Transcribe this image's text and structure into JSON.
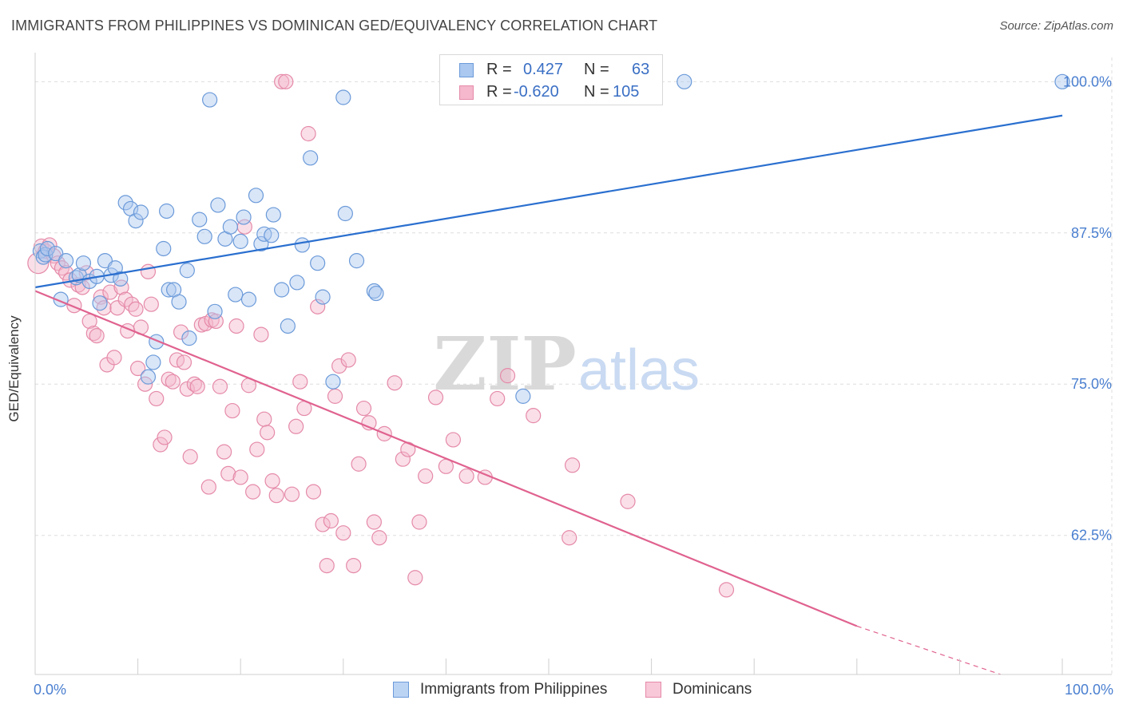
{
  "title": "IMMIGRANTS FROM PHILIPPINES VS DOMINICAN GED/EQUIVALENCY CORRELATION CHART",
  "source": "Source: ZipAtlas.com",
  "watermark": {
    "zip": "ZIP",
    "atlas": "atlas"
  },
  "legend_top": {
    "rows": [
      {
        "r_label": "R =",
        "r_value": "0.427",
        "n_label": "N =",
        "n_value": "63"
      },
      {
        "r_label": "R =",
        "r_value": "-0.620",
        "n_label": "N =",
        "n_value": "105"
      }
    ]
  },
  "colors": {
    "blue_fill": "#aac8f0",
    "blue_stroke": "#6b9ad9",
    "blue_line": "#2a6fcf",
    "pink_fill": "#f5b8cc",
    "pink_stroke": "#e58aa8",
    "pink_line": "#e0628f",
    "tick_label": "#4a7fd0",
    "grid": "#dddddd"
  },
  "chart_data": {
    "type": "scatter",
    "title": "IMMIGRANTS FROM PHILIPPINES VS DOMINICAN GED/EQUIVALENCY CORRELATION CHART",
    "xlabel": "",
    "ylabel": "GED/Equivalency",
    "xlim": [
      0,
      100
    ],
    "ylim": [
      51,
      102
    ],
    "x_tick_labels": [
      "0.0%",
      "100.0%"
    ],
    "y_ticks": [
      {
        "value": 62.5,
        "label": "62.5%"
      },
      {
        "value": 75.0,
        "label": "75.0%"
      },
      {
        "value": 87.5,
        "label": "87.5%"
      },
      {
        "value": 100.0,
        "label": "100.0%"
      }
    ],
    "grid": true,
    "legend_position": "bottom",
    "series": [
      {
        "name": "Immigrants from Philippines",
        "color": "blue",
        "r": 0.427,
        "n": 63,
        "trend": {
          "x0": 0,
          "y0": 83.0,
          "x1": 100,
          "y1": 97.2
        },
        "points": [
          [
            0.5,
            86.0
          ],
          [
            0.8,
            85.5
          ],
          [
            1.0,
            85.7
          ],
          [
            1.2,
            86.2
          ],
          [
            2.0,
            85.8
          ],
          [
            2.5,
            82.0
          ],
          [
            3.0,
            85.2
          ],
          [
            4.0,
            83.8
          ],
          [
            4.3,
            84.0
          ],
          [
            4.7,
            85.0
          ],
          [
            5.3,
            83.5
          ],
          [
            6.0,
            83.9
          ],
          [
            6.3,
            81.7
          ],
          [
            6.8,
            85.2
          ],
          [
            7.4,
            84.0
          ],
          [
            7.8,
            84.6
          ],
          [
            8.3,
            83.7
          ],
          [
            8.8,
            90.0
          ],
          [
            9.3,
            89.5
          ],
          [
            9.8,
            88.5
          ],
          [
            10.3,
            89.2
          ],
          [
            11.0,
            75.6
          ],
          [
            11.5,
            76.8
          ],
          [
            11.8,
            78.5
          ],
          [
            12.5,
            86.2
          ],
          [
            12.8,
            89.3
          ],
          [
            13.0,
            82.8
          ],
          [
            13.5,
            82.8
          ],
          [
            14.0,
            81.8
          ],
          [
            14.8,
            84.4
          ],
          [
            15.0,
            78.8
          ],
          [
            16.0,
            88.6
          ],
          [
            16.5,
            87.2
          ],
          [
            17.0,
            98.5
          ],
          [
            17.5,
            81.0
          ],
          [
            17.8,
            89.8
          ],
          [
            18.5,
            87.0
          ],
          [
            19.0,
            88.0
          ],
          [
            19.5,
            82.4
          ],
          [
            20.0,
            86.8
          ],
          [
            20.3,
            88.8
          ],
          [
            20.8,
            82.0
          ],
          [
            21.5,
            90.6
          ],
          [
            22.0,
            86.6
          ],
          [
            22.3,
            87.4
          ],
          [
            23.0,
            87.3
          ],
          [
            23.2,
            89.0
          ],
          [
            24.0,
            82.8
          ],
          [
            24.6,
            79.8
          ],
          [
            25.5,
            83.4
          ],
          [
            26.0,
            86.5
          ],
          [
            26.8,
            93.7
          ],
          [
            27.5,
            85.0
          ],
          [
            28.0,
            82.2
          ],
          [
            29.0,
            75.2
          ],
          [
            30.0,
            98.7
          ],
          [
            30.2,
            89.1
          ],
          [
            31.3,
            85.2
          ],
          [
            33.0,
            82.7
          ],
          [
            33.2,
            82.5
          ],
          [
            47.5,
            74.0
          ],
          [
            63.2,
            100.0
          ],
          [
            100.0,
            100.0
          ]
        ]
      },
      {
        "name": "Dominicans",
        "color": "pink",
        "r": -0.62,
        "n": 105,
        "trend": {
          "x0": 0,
          "y0": 82.7,
          "x1": 80,
          "y1": 55.0,
          "dash_x1": 94,
          "dash_y1": 51.0
        },
        "points": [
          [
            0.3,
            85.0
          ],
          [
            0.6,
            86.4
          ],
          [
            1.0,
            86.0
          ],
          [
            1.4,
            86.5
          ],
          [
            1.8,
            85.6
          ],
          [
            2.2,
            85.0
          ],
          [
            2.6,
            84.6
          ],
          [
            3.0,
            84.2
          ],
          [
            3.4,
            83.6
          ],
          [
            3.8,
            81.5
          ],
          [
            4.2,
            83.2
          ],
          [
            4.6,
            83.0
          ],
          [
            5.0,
            84.2
          ],
          [
            5.3,
            80.2
          ],
          [
            5.7,
            79.2
          ],
          [
            6.0,
            79.0
          ],
          [
            6.4,
            82.2
          ],
          [
            6.7,
            81.3
          ],
          [
            7.0,
            76.6
          ],
          [
            7.3,
            82.6
          ],
          [
            7.7,
            77.2
          ],
          [
            8.0,
            81.3
          ],
          [
            8.4,
            83.0
          ],
          [
            8.8,
            82.0
          ],
          [
            9.0,
            79.4
          ],
          [
            9.4,
            81.6
          ],
          [
            9.8,
            81.2
          ],
          [
            10.0,
            76.3
          ],
          [
            10.3,
            79.7
          ],
          [
            10.7,
            75.0
          ],
          [
            11.0,
            84.3
          ],
          [
            11.3,
            81.6
          ],
          [
            11.8,
            73.8
          ],
          [
            12.2,
            70.0
          ],
          [
            12.6,
            70.6
          ],
          [
            13.0,
            75.4
          ],
          [
            13.4,
            75.2
          ],
          [
            13.8,
            77.0
          ],
          [
            14.2,
            79.3
          ],
          [
            14.5,
            76.8
          ],
          [
            14.8,
            74.6
          ],
          [
            15.1,
            69.0
          ],
          [
            15.5,
            75.0
          ],
          [
            15.8,
            74.8
          ],
          [
            16.2,
            79.9
          ],
          [
            16.6,
            80.0
          ],
          [
            16.9,
            66.5
          ],
          [
            17.2,
            80.3
          ],
          [
            17.6,
            80.2
          ],
          [
            18.0,
            74.8
          ],
          [
            18.4,
            69.4
          ],
          [
            18.8,
            67.6
          ],
          [
            19.2,
            72.8
          ],
          [
            19.6,
            79.8
          ],
          [
            20.0,
            67.3
          ],
          [
            20.4,
            88.0
          ],
          [
            20.8,
            74.9
          ],
          [
            21.2,
            66.1
          ],
          [
            21.6,
            69.6
          ],
          [
            22.0,
            79.1
          ],
          [
            22.3,
            72.1
          ],
          [
            22.6,
            71.0
          ],
          [
            23.1,
            67.0
          ],
          [
            23.5,
            65.8
          ],
          [
            24.0,
            100.0
          ],
          [
            24.4,
            100.0
          ],
          [
            25.0,
            65.9
          ],
          [
            25.4,
            71.5
          ],
          [
            25.8,
            75.2
          ],
          [
            26.2,
            73.0
          ],
          [
            26.6,
            95.7
          ],
          [
            27.1,
            66.1
          ],
          [
            27.5,
            81.4
          ],
          [
            28.0,
            63.4
          ],
          [
            28.4,
            60.0
          ],
          [
            28.8,
            63.7
          ],
          [
            29.2,
            74.0
          ],
          [
            29.6,
            76.5
          ],
          [
            30.0,
            62.7
          ],
          [
            30.5,
            77.0
          ],
          [
            31.0,
            60.0
          ],
          [
            31.5,
            68.4
          ],
          [
            32.0,
            73.0
          ],
          [
            32.5,
            71.8
          ],
          [
            33.0,
            63.6
          ],
          [
            33.5,
            62.3
          ],
          [
            34.0,
            70.9
          ],
          [
            35.0,
            75.1
          ],
          [
            35.8,
            68.8
          ],
          [
            36.3,
            69.6
          ],
          [
            37.0,
            59.0
          ],
          [
            37.4,
            63.6
          ],
          [
            38.0,
            67.4
          ],
          [
            39.0,
            73.9
          ],
          [
            40.0,
            68.2
          ],
          [
            40.7,
            70.4
          ],
          [
            42.0,
            67.4
          ],
          [
            43.8,
            67.3
          ],
          [
            45.0,
            73.8
          ],
          [
            46.0,
            75.7
          ],
          [
            48.5,
            72.4
          ],
          [
            52.0,
            62.3
          ],
          [
            52.3,
            68.3
          ],
          [
            57.7,
            65.3
          ],
          [
            67.3,
            58.0
          ]
        ]
      }
    ]
  },
  "legend_bottom": {
    "items": [
      {
        "label": "Immigrants from Philippines"
      },
      {
        "label": "Dominicans"
      }
    ]
  }
}
